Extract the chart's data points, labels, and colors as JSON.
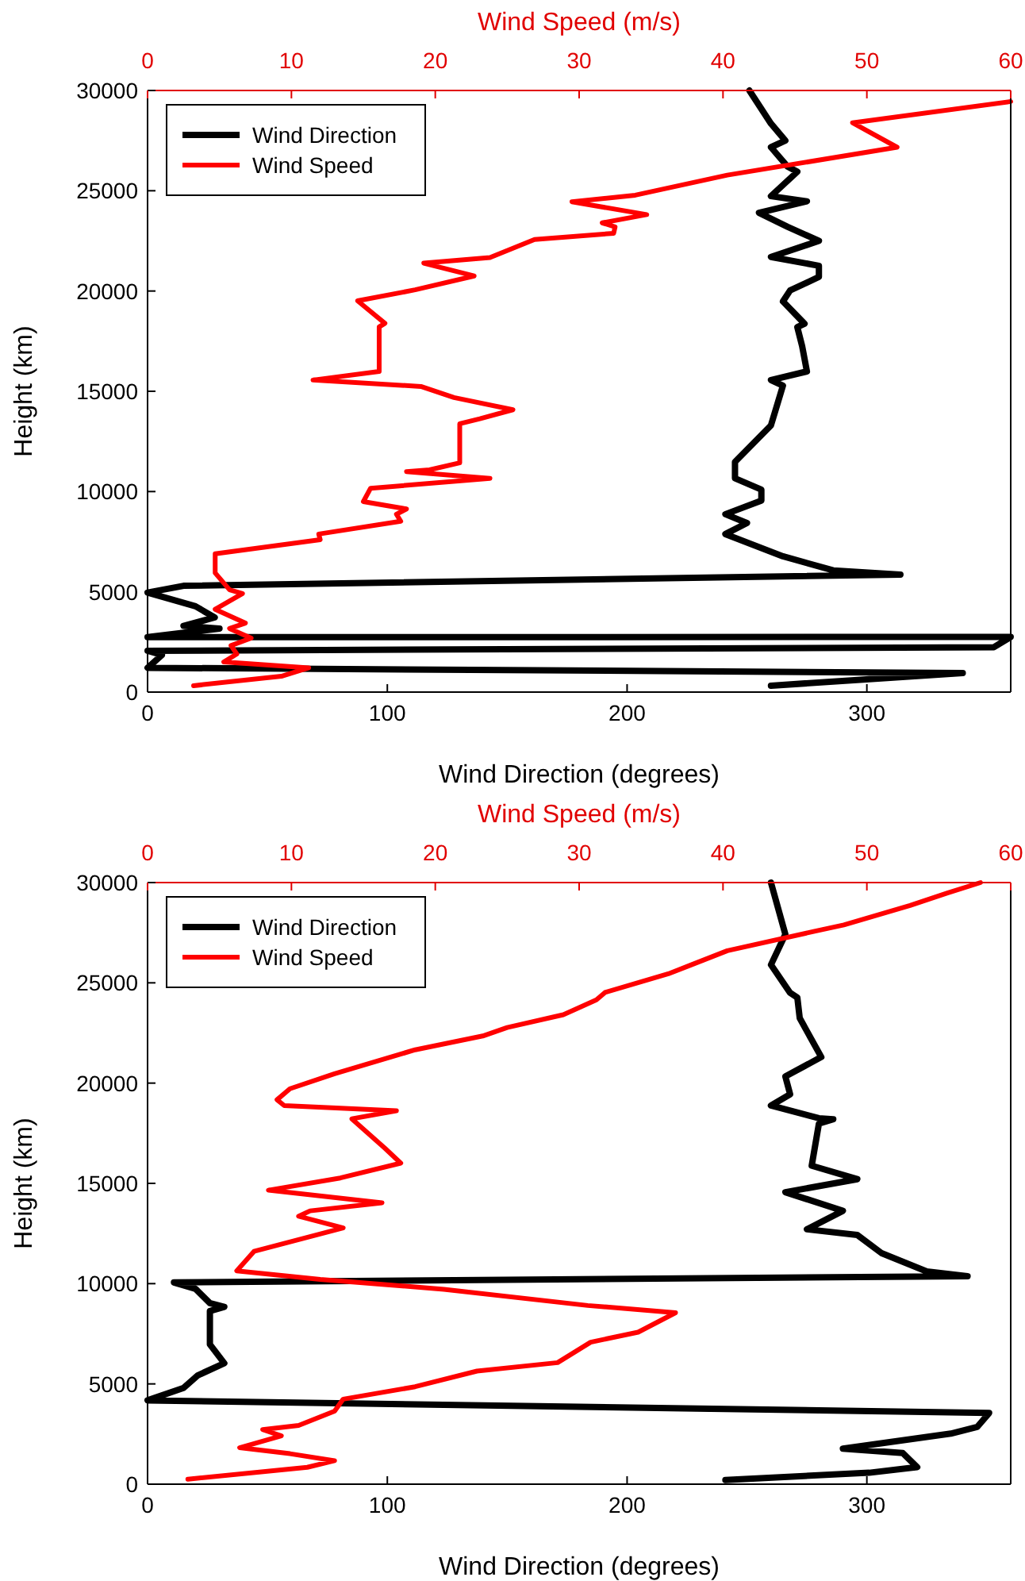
{
  "chart_data": [
    {
      "type": "line",
      "xlabel": "Wind Direction (degrees)",
      "x2label": "Wind Speed (m/s)",
      "ylabel": "Height (km)",
      "xlim": [
        0,
        360
      ],
      "xticks": [
        0,
        100,
        200,
        300
      ],
      "x2lim": [
        0,
        60
      ],
      "x2ticks": [
        0,
        10,
        20,
        30,
        40,
        50,
        60
      ],
      "ylim": [
        0,
        30000
      ],
      "yticks": [
        0,
        5000,
        10000,
        15000,
        20000,
        25000,
        30000
      ],
      "legend": "top left",
      "grid": false,
      "series": [
        {
          "name": "Wind Direction",
          "color": "#000000",
          "x": [
            251,
            260,
            266,
            260,
            267,
            271,
            260,
            275,
            255,
            267,
            280,
            260,
            280,
            280,
            268,
            265,
            274,
            271,
            273,
            275,
            260,
            265,
            260,
            245,
            245,
            256,
            256,
            241,
            250,
            241,
            265,
            286,
            314,
            15,
            0,
            20,
            28,
            15,
            30,
            0,
            360,
            353,
            0,
            6,
            0,
            340,
            260
          ],
          "values": [
            30000,
            28350,
            27500,
            27170,
            26200,
            25950,
            24730,
            24470,
            23900,
            23200,
            22500,
            21700,
            21260,
            20700,
            20030,
            19480,
            18370,
            18200,
            17260,
            15990,
            15560,
            15280,
            13300,
            11480,
            10660,
            10100,
            9550,
            8870,
            8430,
            7880,
            6770,
            6070,
            5860,
            5300,
            4960,
            4280,
            3720,
            3300,
            3170,
            2740,
            2750,
            2240,
            2060,
            1850,
            1210,
            950,
            320
          ]
        },
        {
          "name": "Wind Speed",
          "color": "#ff0000",
          "axis": "x2",
          "x": [
            60,
            49,
            52.1,
            40.3,
            33.9,
            29.5,
            34.7,
            31.6,
            32.5,
            32.4,
            26.9,
            23.8,
            19.2,
            22.7,
            18.6,
            14.6,
            16.5,
            16.1,
            16.1,
            11.5,
            19,
            21.3,
            25.4,
            23.1,
            21.7,
            21.7,
            19.6,
            18,
            23.8,
            15.5,
            15,
            18,
            17.3,
            17.6,
            11.9,
            12,
            4.7,
            4.7,
            5.7,
            6.6,
            4.7,
            6.8,
            5.7,
            7.2,
            5.8,
            6.2,
            5.3,
            11.2,
            9.3,
            3.2
          ],
          "values": [
            29450,
            28390,
            27170,
            25780,
            24780,
            24450,
            23810,
            23400,
            23200,
            22880,
            22570,
            21670,
            21390,
            20750,
            20060,
            19510,
            18390,
            18210,
            15990,
            15560,
            15240,
            14690,
            14080,
            13630,
            13380,
            11430,
            11080,
            10990,
            10660,
            10160,
            9500,
            9130,
            8870,
            8520,
            7880,
            7600,
            6900,
            5940,
            5100,
            4910,
            4130,
            3440,
            3170,
            2690,
            2320,
            1900,
            1500,
            1210,
            790,
            320
          ]
        }
      ]
    },
    {
      "type": "line",
      "xlabel": "Wind Direction (degrees)",
      "x2label": "Wind Speed (m/s)",
      "ylabel": "Height (km)",
      "xlim": [
        0,
        360
      ],
      "xticks": [
        0,
        100,
        200,
        300
      ],
      "x2lim": [
        0,
        60
      ],
      "x2ticks": [
        0,
        10,
        20,
        30,
        40,
        50,
        60
      ],
      "ylim": [
        0,
        30000
      ],
      "yticks": [
        0,
        5000,
        10000,
        15000,
        20000,
        25000,
        30000
      ],
      "legend": "top left",
      "grid": false,
      "series": [
        {
          "name": "Wind Direction",
          "color": "#000000",
          "x": [
            260,
            266,
            260,
            268,
            271,
            272,
            281,
            266,
            268,
            260,
            280,
            286,
            280,
            277,
            296,
            266,
            290,
            275,
            296,
            306,
            325,
            342,
            11,
            20,
            26,
            32,
            26,
            26,
            32,
            21,
            15,
            0,
            351,
            346,
            335,
            290,
            315,
            321,
            301,
            241
          ],
          "values": [
            30000,
            27420,
            25900,
            24500,
            24270,
            23240,
            21300,
            20330,
            19440,
            18880,
            18250,
            18200,
            17980,
            15880,
            15210,
            14560,
            13630,
            12710,
            12430,
            11530,
            10610,
            10370,
            10060,
            9740,
            9030,
            8840,
            8630,
            6970,
            6030,
            5430,
            4800,
            4180,
            3550,
            2850,
            2520,
            1770,
            1550,
            850,
            570,
            210
          ]
        },
        {
          "name": "Wind Speed",
          "color": "#ff0000",
          "axis": "x2",
          "x": [
            57.9,
            55.6,
            53,
            48.4,
            46.3,
            40.3,
            37.8,
            36.2,
            31.8,
            31.2,
            28.9,
            25,
            23.3,
            18.6,
            13,
            9.9,
            9,
            9.5,
            17.3,
            14.2,
            16.5,
            17.6,
            13.4,
            8.4,
            16.3,
            11.3,
            10.5,
            13.6,
            7.4,
            6.2,
            12,
            20.6,
            30.6,
            36.7,
            34.1,
            30.8,
            28.5,
            22.9,
            18.6,
            13.6,
            13,
            10.5,
            8,
            9.3,
            6.4,
            9.9,
            13,
            11.1,
            2.8
          ],
          "values": [
            30000,
            29480,
            28860,
            27890,
            27560,
            26600,
            25900,
            25450,
            24520,
            24150,
            23410,
            22770,
            22350,
            21660,
            20470,
            19720,
            19170,
            18880,
            18620,
            18220,
            16750,
            16010,
            15270,
            14660,
            14030,
            13630,
            13360,
            12780,
            11610,
            10640,
            10210,
            9720,
            8910,
            8550,
            7580,
            7080,
            6060,
            5640,
            4860,
            4240,
            3640,
            2930,
            2720,
            2410,
            1820,
            1520,
            1170,
            840,
            250
          ]
        }
      ]
    }
  ]
}
